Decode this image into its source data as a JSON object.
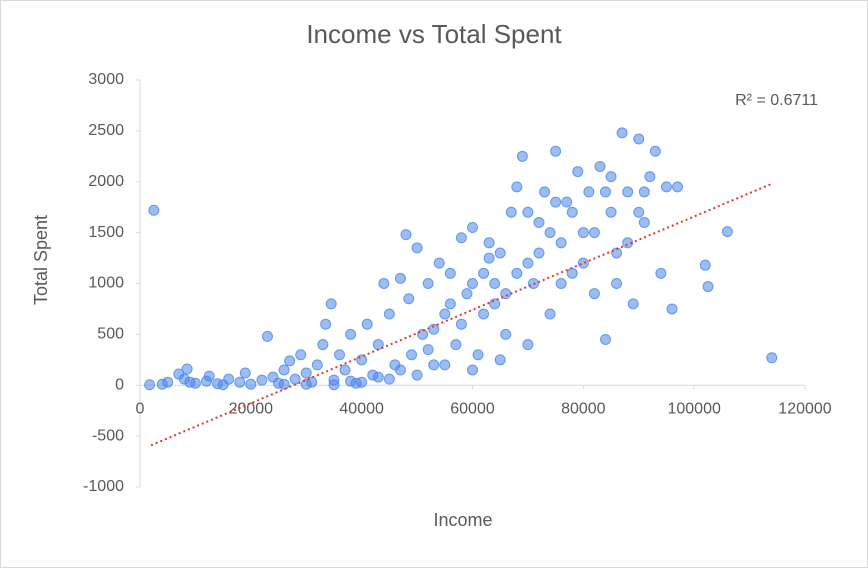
{
  "chart_data": {
    "type": "scatter",
    "title": "Income vs Total Spent",
    "xlabel": "Income",
    "ylabel": "Total Spent",
    "color": "#4a86e8",
    "grid": false,
    "annotation": "R² = 0.6711",
    "xlim": [
      0,
      120000
    ],
    "xticks": [
      0,
      20000,
      40000,
      60000,
      80000,
      100000,
      120000
    ],
    "ylim": [
      -1000,
      3000
    ],
    "yticks": [
      -1000,
      -500,
      0,
      500,
      1000,
      1500,
      2000,
      2500,
      3000
    ],
    "trendline": {
      "color": "#e0382b",
      "x": [
        2000,
        114000
      ],
      "y": [
        -590,
        1980
      ]
    },
    "x": [
      1730,
      2500,
      4000,
      5000,
      7000,
      8000,
      8500,
      10000,
      12000,
      14000,
      16000,
      18000,
      19000,
      20000,
      22000,
      23000,
      24000,
      25000,
      26000,
      27000,
      28000,
      29000,
      30000,
      31000,
      32000,
      33000,
      33500,
      34500,
      35000,
      36000,
      37000,
      38000,
      39000,
      40000,
      41000,
      42000,
      43000,
      44000,
      45000,
      46000,
      47000,
      48000,
      48500,
      49000,
      50000,
      51000,
      52000,
      53000,
      54000,
      55000,
      56000,
      57000,
      58000,
      59000,
      60000,
      61000,
      62000,
      63000,
      64000,
      65000,
      66000,
      67000,
      68000,
      69000,
      70000,
      71000,
      72000,
      73000,
      74000,
      75000,
      76000,
      77000,
      78000,
      79000,
      80000,
      81000,
      82000,
      83000,
      84000,
      85000,
      86000,
      87000,
      88000,
      89000,
      90000,
      91000,
      92000,
      93000,
      94000,
      95000,
      96000,
      97000,
      102000,
      102500,
      106000,
      114000,
      30000,
      35000,
      40000,
      45000,
      50000,
      55000,
      60000,
      65000,
      70000,
      66000,
      72000,
      78000,
      82000,
      86000,
      74000,
      68000,
      62000,
      58000,
      52000,
      47000,
      43000,
      38000,
      26000,
      15000,
      12500,
      9000,
      63000,
      76000,
      80000,
      84000,
      88000,
      91000,
      70000,
      64000,
      90000,
      85000,
      75000,
      60000,
      56000,
      53000
    ],
    "y": [
      5,
      1720,
      10,
      30,
      110,
      60,
      160,
      20,
      40,
      15,
      60,
      30,
      120,
      10,
      50,
      480,
      80,
      20,
      150,
      240,
      60,
      300,
      120,
      30,
      200,
      400,
      600,
      800,
      50,
      300,
      150,
      500,
      20,
      250,
      600,
      100,
      400,
      1000,
      700,
      200,
      1050,
      1480,
      850,
      300,
      1350,
      500,
      1000,
      200,
      1200,
      700,
      1100,
      400,
      1450,
      900,
      1550,
      300,
      1100,
      1400,
      800,
      1300,
      500,
      1700,
      1950,
      2250,
      1200,
      1000,
      1600,
      1900,
      700,
      2300,
      1400,
      1800,
      1100,
      2100,
      1500,
      1900,
      900,
      2150,
      450,
      1700,
      1300,
      2480,
      1900,
      800,
      2420,
      1600,
      2050,
      2300,
      1100,
      1950,
      750,
      1950,
      1180,
      970,
      1510,
      270,
      10,
      5,
      30,
      60,
      100,
      200,
      150,
      250,
      400,
      900,
      1300,
      1700,
      1500,
      1000,
      1500,
      1100,
      700,
      600,
      350,
      150,
      80,
      40,
      10,
      5,
      90,
      30,
      1250,
      1000,
      1200,
      1900,
      1400,
      1900,
      1700,
      1000,
      1700,
      2050,
      1800,
      1000,
      800,
      550
    ]
  }
}
